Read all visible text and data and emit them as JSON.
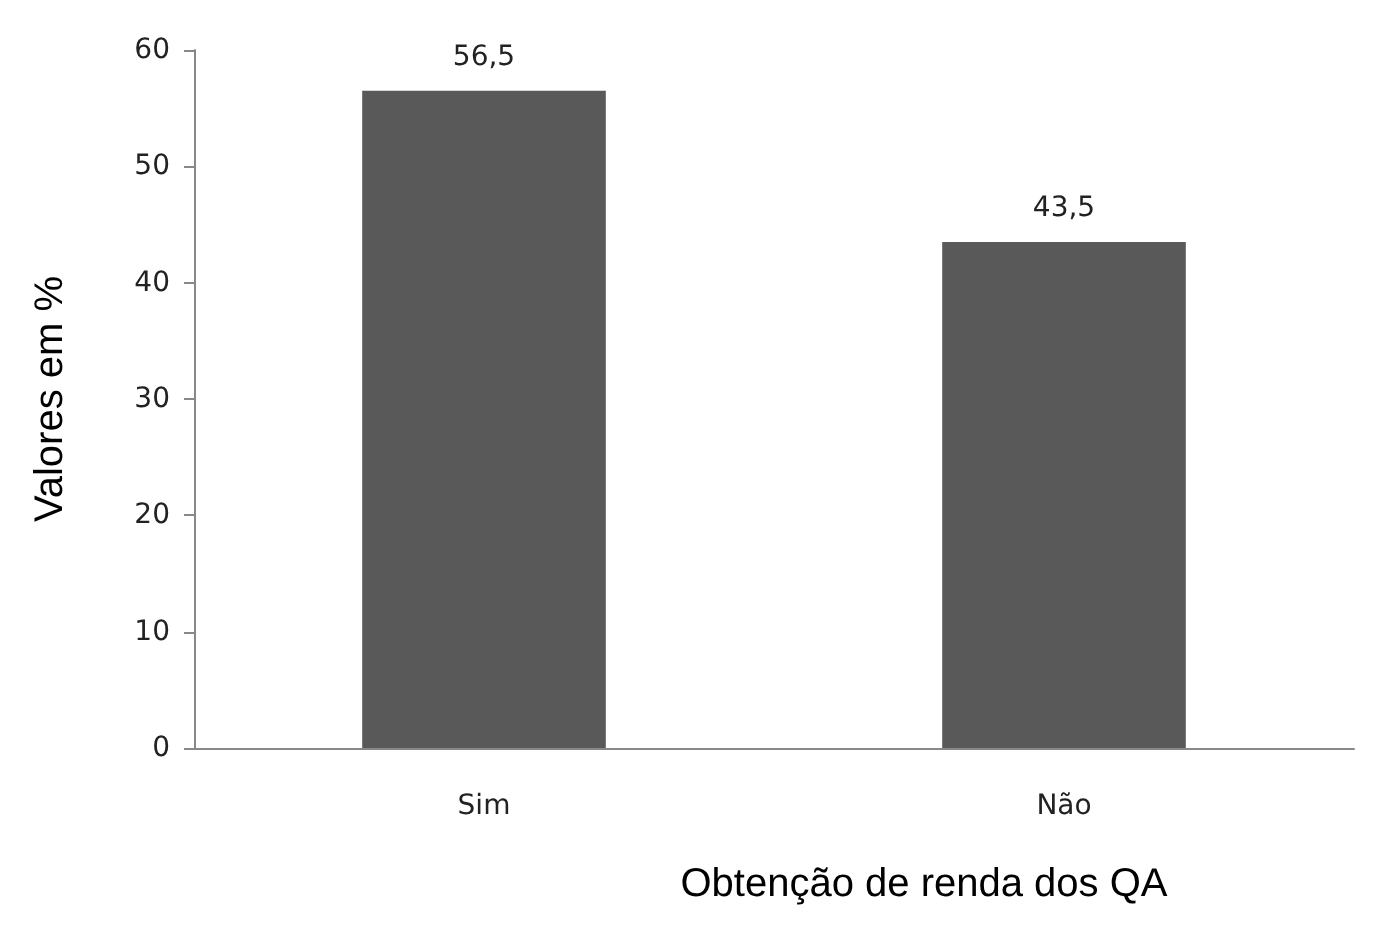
{
  "chart_data": {
    "type": "bar",
    "xlabel": "Obtenção de renda dos QA",
    "ylabel": "Valores em %",
    "categories": [
      "Sim",
      "Não"
    ],
    "values": [
      56.5,
      43.5
    ],
    "value_labels": [
      "56,5",
      "43,5"
    ],
    "color": "#595959",
    "ylim": [
      0,
      60
    ],
    "yticks": [
      0,
      10,
      20,
      30,
      40,
      50,
      60
    ],
    "grid": false
  }
}
